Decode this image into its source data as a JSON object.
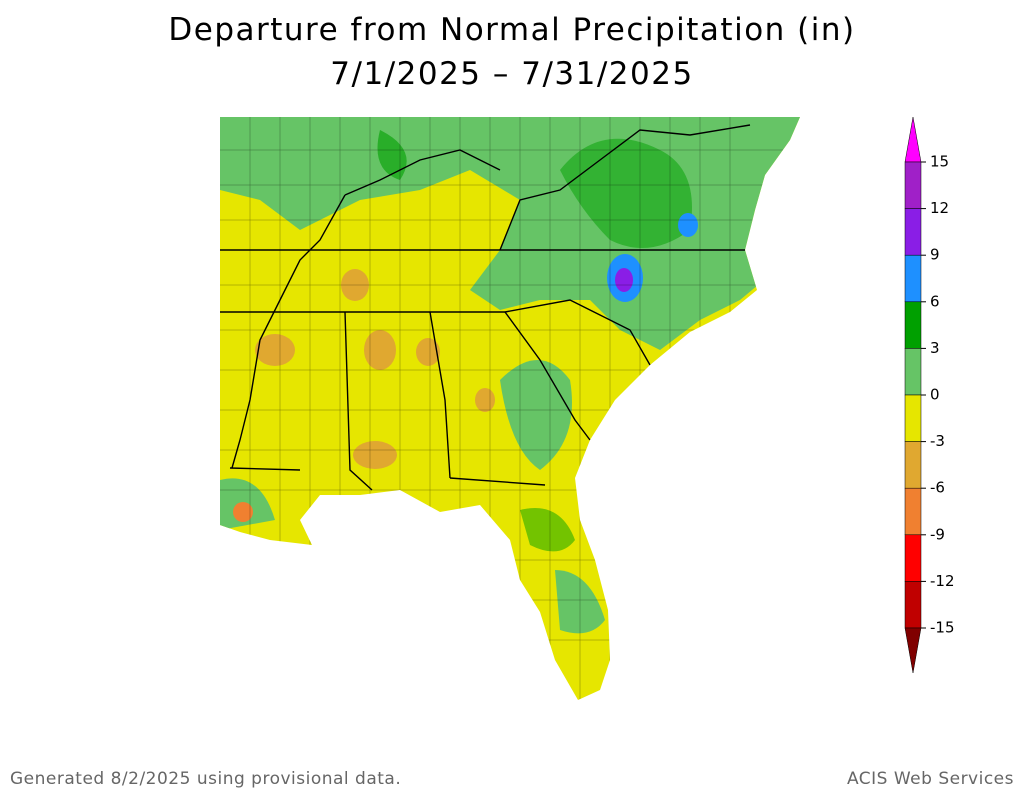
{
  "title": "Departure from Normal Precipitation (in)",
  "subtitle": "7/1/2025 – 7/31/2025",
  "legend": {
    "ticks": [
      15,
      12,
      9,
      6,
      3,
      0,
      -3,
      -6,
      -9,
      -12,
      -15
    ],
    "colors": [
      "#ff00ff",
      "#a020c8",
      "#8a1ee6",
      "#1e90ff",
      "#00a000",
      "#66c466",
      "#e6e600",
      "#e0a830",
      "#f08030",
      "#ff0000",
      "#c00000",
      "#800000"
    ]
  },
  "footer": {
    "left": "Generated 8/2/2025 using provisional data.",
    "right": "ACIS Web Services"
  }
}
